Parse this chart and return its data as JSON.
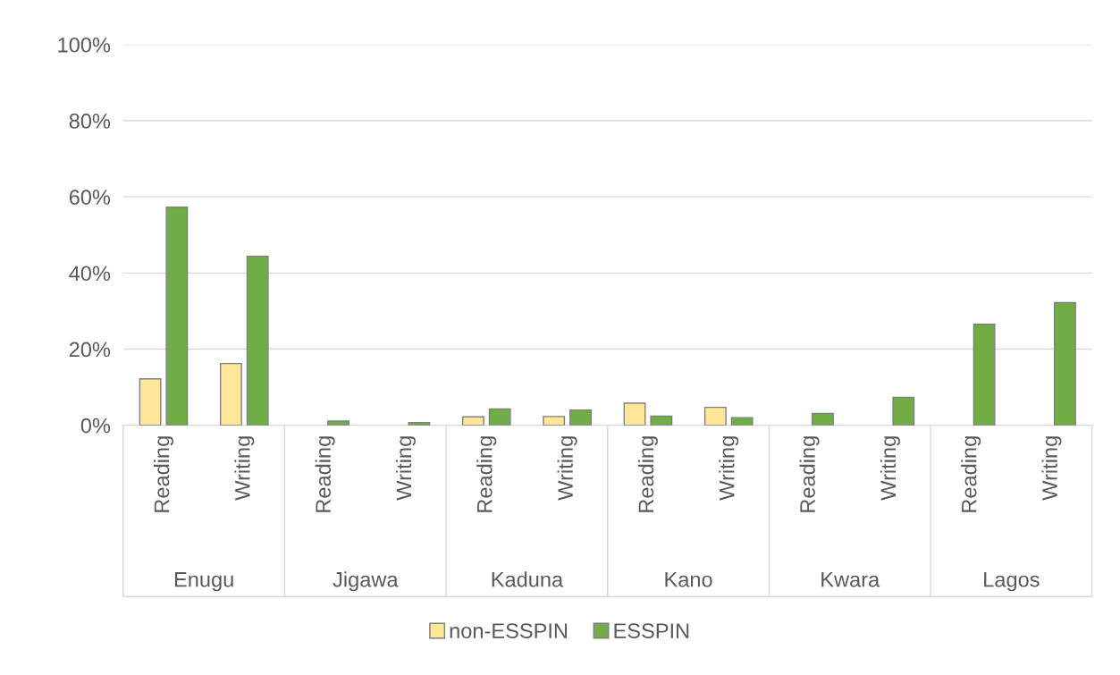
{
  "chart_data": {
    "type": "bar",
    "categories": [
      "Reading",
      "Writing",
      "Reading",
      "Writing",
      "Reading",
      "Writing",
      "Reading",
      "Writing",
      "Reading",
      "Writing",
      "Reading",
      "Writing"
    ],
    "annotations": [
      "Enugu",
      "Jigawa",
      "Kaduna",
      "Kano",
      "Kwara",
      "Lagos"
    ],
    "series": [
      {
        "name": "non-ESSPIN",
        "color": "#ffe699",
        "values": [
          12.2,
          16.2,
          null,
          null,
          2.2,
          2.3,
          5.8,
          4.7,
          null,
          null,
          null,
          null
        ]
      },
      {
        "name": "ESSPIN",
        "color": "#70ad47",
        "values": [
          57.3,
          44.4,
          1.1,
          0.7,
          4.3,
          4.0,
          2.4,
          2.0,
          3.1,
          7.3,
          26.5,
          32.2
        ]
      }
    ],
    "ylim": [
      0,
      100
    ],
    "yticks": [
      {
        "value": 0,
        "label": "0%"
      },
      {
        "value": 20,
        "label": "20%"
      },
      {
        "value": 40,
        "label": "40%"
      },
      {
        "value": 60,
        "label": "60%"
      },
      {
        "value": 80,
        "label": "80%"
      },
      {
        "value": 100,
        "label": "100%"
      }
    ],
    "grid": "y",
    "legend": "bottom"
  }
}
